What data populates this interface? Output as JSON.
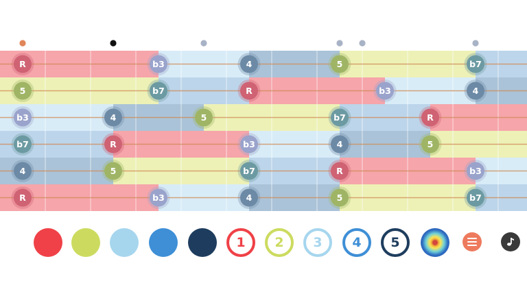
{
  "fretboard": {
    "degree_colors": {
      "R": {
        "band": "#f6a5aa",
        "dot": "#cf6273"
      },
      "5": {
        "band": "#edf1b6",
        "dot": "#9fb565"
      },
      "b3": {
        "band": "#d8ecf7",
        "dot": "#9aa3cb"
      },
      "4": {
        "band": "#aac3d8",
        "dot": "#6c8aa6"
      },
      "b7": {
        "band": "#bcd5ea",
        "dot": "#6c9aa2"
      }
    },
    "inlay_markers": [
      {
        "fret": 0,
        "color": "#e0865a"
      },
      {
        "fret": 2,
        "color": "#111111"
      },
      {
        "fret": 4,
        "color": "#a9b3c6"
      },
      {
        "fret": 7,
        "color": "#a9b3c6"
      },
      {
        "fret": 7.5,
        "color": "#a9b3c6"
      },
      {
        "fret": 10,
        "color": "#a9b3c6"
      }
    ],
    "strings": [
      {
        "string_number": 1,
        "notes": [
          {
            "fret": 0,
            "label": "R"
          },
          {
            "fret": 3,
            "label": "b3"
          },
          {
            "fret": 5,
            "label": "4"
          },
          {
            "fret": 7,
            "label": "5"
          },
          {
            "fret": 10,
            "label": "b7"
          }
        ]
      },
      {
        "string_number": 2,
        "notes": [
          {
            "fret": 0,
            "label": "5"
          },
          {
            "fret": 3,
            "label": "b7"
          },
          {
            "fret": 5,
            "label": "R"
          },
          {
            "fret": 8,
            "label": "b3"
          },
          {
            "fret": 10,
            "label": "4"
          }
        ]
      },
      {
        "string_number": 3,
        "notes": [
          {
            "fret": 0,
            "label": "b3"
          },
          {
            "fret": 2,
            "label": "4"
          },
          {
            "fret": 4,
            "label": "5"
          },
          {
            "fret": 7,
            "label": "b7"
          },
          {
            "fret": 9,
            "label": "R"
          }
        ]
      },
      {
        "string_number": 4,
        "notes": [
          {
            "fret": 0,
            "label": "b7"
          },
          {
            "fret": 2,
            "label": "R"
          },
          {
            "fret": 5,
            "label": "b3"
          },
          {
            "fret": 7,
            "label": "4"
          },
          {
            "fret": 9,
            "label": "5"
          }
        ]
      },
      {
        "string_number": 5,
        "notes": [
          {
            "fret": 0,
            "label": "4"
          },
          {
            "fret": 2,
            "label": "5"
          },
          {
            "fret": 5,
            "label": "b7"
          },
          {
            "fret": 7,
            "label": "R"
          },
          {
            "fret": 10,
            "label": "b3"
          }
        ]
      },
      {
        "string_number": 6,
        "notes": [
          {
            "fret": 0,
            "label": "R"
          },
          {
            "fret": 3,
            "label": "b3"
          },
          {
            "fret": 5,
            "label": "4"
          },
          {
            "fret": 7,
            "label": "5"
          },
          {
            "fret": 10,
            "label": "b7"
          }
        ]
      }
    ]
  },
  "toolbar": {
    "swatches": [
      {
        "name": "red-swatch",
        "color": "#ef4147"
      },
      {
        "name": "lime-swatch",
        "color": "#ccdb5f"
      },
      {
        "name": "light-blue-swatch",
        "color": "#a6d6ee"
      },
      {
        "name": "blue-swatch",
        "color": "#3e8fd6"
      },
      {
        "name": "navy-swatch",
        "color": "#1e3d5e"
      }
    ],
    "numbered": [
      {
        "name": "finger-1-button",
        "label": "1",
        "color": "#ef4147"
      },
      {
        "name": "finger-2-button",
        "label": "2",
        "color": "#ccdb5f"
      },
      {
        "name": "finger-3-button",
        "label": "3",
        "color": "#a6d6ee"
      },
      {
        "name": "finger-4-button",
        "label": "4",
        "color": "#3e8fd6"
      },
      {
        "name": "finger-5-button",
        "label": "5",
        "color": "#1e3d5e"
      }
    ],
    "icons": {
      "spectrum": "target-spectrum-icon",
      "menu": "hamburger-menu-icon",
      "sound": "music-note-icon"
    }
  }
}
